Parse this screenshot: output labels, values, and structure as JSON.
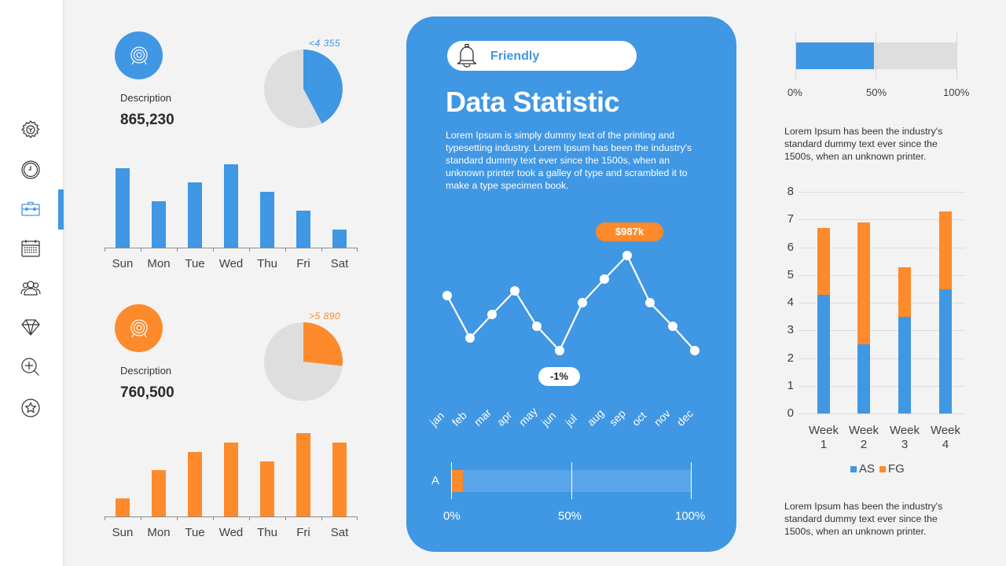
{
  "sidebar": {
    "items": [
      {
        "name": "settings",
        "icon": "gear-icon",
        "active": false
      },
      {
        "name": "clock",
        "icon": "clock-icon",
        "active": false
      },
      {
        "name": "briefcase",
        "icon": "briefcase-icon",
        "active": true
      },
      {
        "name": "calendar",
        "icon": "calendar-icon",
        "active": false
      },
      {
        "name": "team",
        "icon": "users-icon",
        "active": false
      },
      {
        "name": "diamond",
        "icon": "diamond-icon",
        "active": false
      },
      {
        "name": "zoom-in",
        "icon": "zoom-in-icon",
        "active": false
      },
      {
        "name": "favorites",
        "icon": "star-icon",
        "active": false
      }
    ]
  },
  "colors": {
    "blue": "#4097e3",
    "orange": "#fd8a2b",
    "grey": "#dedede",
    "background": "#f3f3f3"
  },
  "stat_blue": {
    "icon": "target-icon",
    "label": "Description",
    "value": "865,230",
    "pie_label": "<4 355",
    "pie_percent": 42
  },
  "stat_orange": {
    "icon": "target-icon",
    "label": "Description",
    "value": "760,500",
    "pie_label": ">5 890",
    "pie_percent": 26
  },
  "center_card": {
    "pill_icon": "bell-icon",
    "pill_label": "Friendly",
    "title": "Data Statistic",
    "paragraph": "Lorem Ipsum is simply dummy text of the printing and typesetting industry. Lorem Ipsum has been the industry's standard dummy text ever since the 1500s, when an unknown printer took a galley of type and scrambled it to make a type specimen book.",
    "peak_tag": "$987k",
    "low_tag": "-1%",
    "progress": {
      "label": "A",
      "value_percent": 3,
      "ticks": [
        "0%",
        "50%",
        "100%"
      ]
    }
  },
  "right_panel": {
    "progress": {
      "value_percent": 49,
      "ticks": [
        "0%",
        "50%",
        "100%"
      ]
    },
    "paragraph_top": "Lorem Ipsum has been the industry's standard dummy text ever since the 1500s, when an unknown printer.",
    "paragraph_bottom": "Lorem Ipsum has been the industry's standard dummy text ever since the 1500s, when an unknown printer."
  },
  "chart_data": [
    {
      "type": "pie",
      "title": "",
      "labels": [
        "highlighted",
        "rest"
      ],
      "values": [
        42,
        58
      ],
      "colors": [
        "#4097e3",
        "#dedede"
      ],
      "annotation": "<4 355"
    },
    {
      "type": "bar",
      "title": "",
      "categories": [
        "Sun",
        "Mon",
        "Tue",
        "Wed",
        "Thu",
        "Fri",
        "Sat"
      ],
      "values": [
        101,
        59,
        83,
        106,
        71,
        47,
        23
      ],
      "color": "#4097e3",
      "xlabel": "",
      "ylabel": "",
      "grid": false
    },
    {
      "type": "pie",
      "title": "",
      "labels": [
        "highlighted",
        "rest"
      ],
      "values": [
        26,
        74
      ],
      "colors": [
        "#fd8a2b",
        "#dedede"
      ],
      "annotation": ">5 890"
    },
    {
      "type": "bar",
      "title": "",
      "categories": [
        "Sun",
        "Mon",
        "Tue",
        "Wed",
        "Thu",
        "Fri",
        "Sat"
      ],
      "values": [
        23,
        60,
        83,
        95,
        71,
        107,
        95
      ],
      "color": "#fd8a2b",
      "xlabel": "",
      "ylabel": "",
      "grid": false
    },
    {
      "type": "line",
      "title": "",
      "categories": [
        "jan",
        "feb",
        "mar",
        "apr",
        "may",
        "jun",
        "jul",
        "aug",
        "sep",
        "oct",
        "nov",
        "dec"
      ],
      "values": [
        50,
        32,
        42,
        52,
        37,
        27,
        47,
        57,
        67,
        47,
        37,
        27
      ],
      "color": "#ffffff",
      "annotations": [
        {
          "x": "sep",
          "text": "$987k"
        },
        {
          "x": "jun",
          "text": "-1%"
        }
      ]
    },
    {
      "type": "bar",
      "orientation": "horizontal",
      "categories": [
        "A"
      ],
      "values": [
        3
      ],
      "xlim": [
        0,
        100
      ],
      "ticks": [
        "0%",
        "50%",
        "100%"
      ]
    },
    {
      "type": "bar",
      "orientation": "horizontal",
      "categories": [
        ""
      ],
      "values": [
        49
      ],
      "xlim": [
        0,
        100
      ],
      "ticks": [
        "0%",
        "50%",
        "100%"
      ]
    },
    {
      "type": "bar",
      "stacked": true,
      "title": "",
      "categories": [
        "Week 1",
        "Week 2",
        "Week 3",
        "Week 4"
      ],
      "series": [
        {
          "name": "AS",
          "values": [
            4.3,
            2.5,
            3.5,
            4.5
          ],
          "color": "#4097e3"
        },
        {
          "name": "FG",
          "values": [
            2.4,
            4.4,
            1.8,
            2.8
          ],
          "color": "#fd8a2b"
        }
      ],
      "ylim": [
        0,
        8
      ],
      "yticks": [
        "0",
        "1",
        "2",
        "3",
        "4",
        "5",
        "6",
        "7",
        "8"
      ],
      "grid": true,
      "legend_position": "bottom"
    }
  ]
}
